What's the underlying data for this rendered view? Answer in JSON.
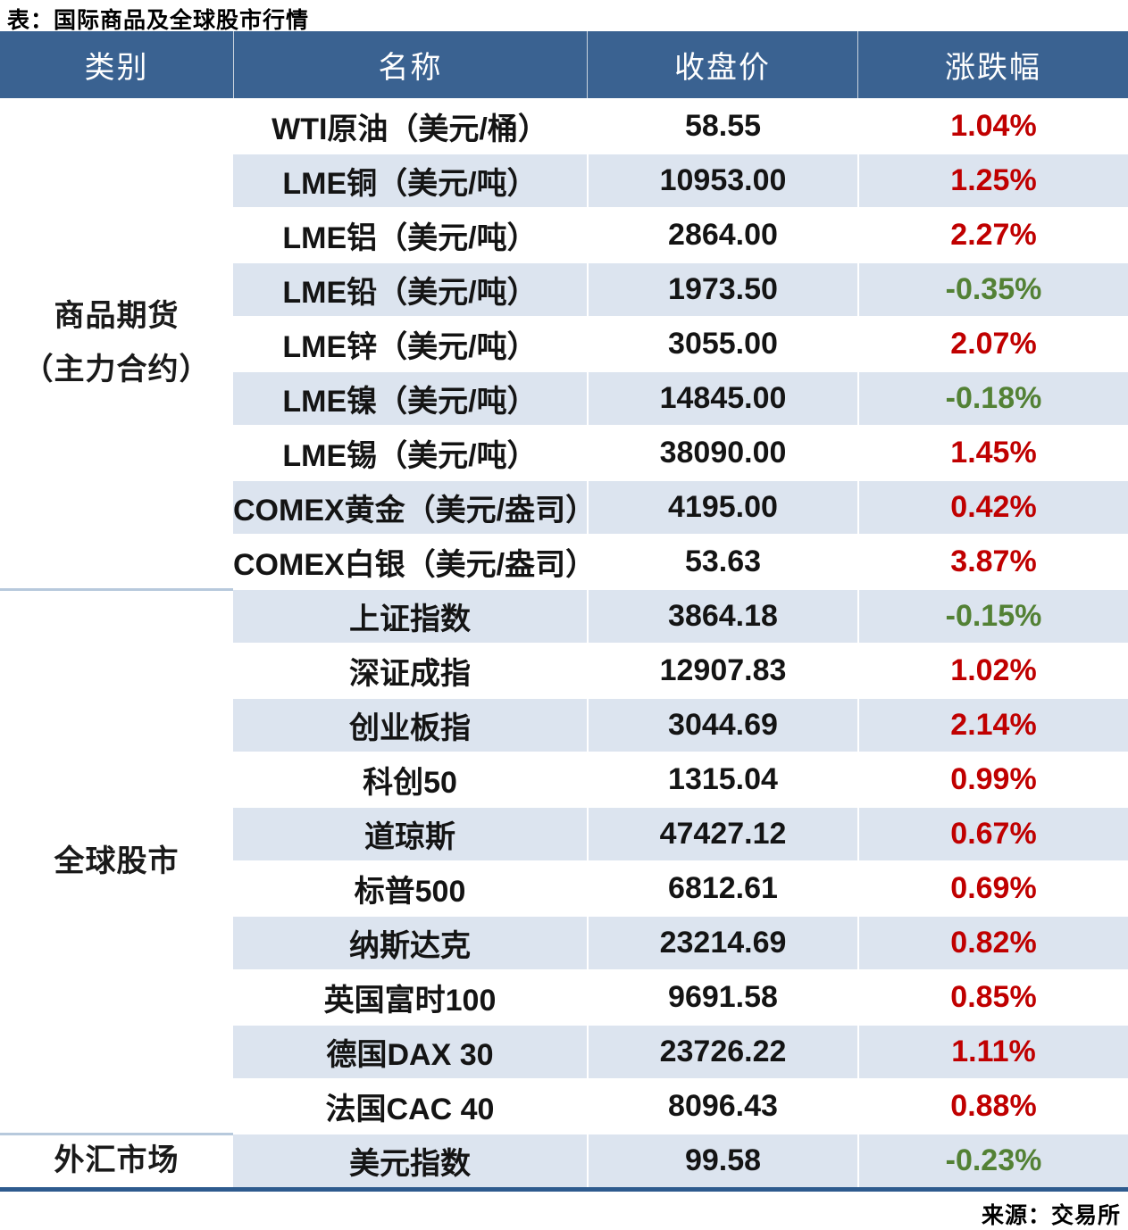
{
  "colors": {
    "header_bg": "#3A6291",
    "row_alt": "#DCE4EF",
    "up": "#C00000",
    "down": "#538135",
    "table_border": "#2E5B8E",
    "group_sep": "#B7C9DC"
  },
  "chart_data": {
    "type": "table",
    "title": "表：国际商品及全球股市行情",
    "source": "来源：交易所",
    "columns": [
      "类别",
      "名称",
      "收盘价",
      "涨跌幅"
    ],
    "groups": [
      {
        "category": "商品期货（主力合约）",
        "category_lines": [
          "商品期货",
          "（主力合约）"
        ],
        "rows": [
          {
            "name": "WTI原油（美元/桶）",
            "close": "58.55",
            "change": "1.04%",
            "direction": "up"
          },
          {
            "name": "LME铜（美元/吨）",
            "close": "10953.00",
            "change": "1.25%",
            "direction": "up"
          },
          {
            "name": "LME铝（美元/吨）",
            "close": "2864.00",
            "change": "2.27%",
            "direction": "up"
          },
          {
            "name": "LME铅（美元/吨）",
            "close": "1973.50",
            "change": "-0.35%",
            "direction": "down"
          },
          {
            "name": "LME锌（美元/吨）",
            "close": "3055.00",
            "change": "2.07%",
            "direction": "up"
          },
          {
            "name": "LME镍（美元/吨）",
            "close": "14845.00",
            "change": "-0.18%",
            "direction": "down"
          },
          {
            "name": "LME锡（美元/吨）",
            "close": "38090.00",
            "change": "1.45%",
            "direction": "up"
          },
          {
            "name": "COMEX黄金（美元/盎司）",
            "close": "4195.00",
            "change": "0.42%",
            "direction": "up"
          },
          {
            "name": "COMEX白银（美元/盎司）",
            "close": "53.63",
            "change": "3.87%",
            "direction": "up"
          }
        ]
      },
      {
        "category": "全球股市",
        "category_lines": [
          "全球股市"
        ],
        "rows": [
          {
            "name": "上证指数",
            "close": "3864.18",
            "change": "-0.15%",
            "direction": "down"
          },
          {
            "name": "深证成指",
            "close": "12907.83",
            "change": "1.02%",
            "direction": "up"
          },
          {
            "name": "创业板指",
            "close": "3044.69",
            "change": "2.14%",
            "direction": "up"
          },
          {
            "name": "科创50",
            "close": "1315.04",
            "change": "0.99%",
            "direction": "up"
          },
          {
            "name": "道琼斯",
            "close": "47427.12",
            "change": "0.67%",
            "direction": "up"
          },
          {
            "name": "标普500",
            "close": "6812.61",
            "change": "0.69%",
            "direction": "up"
          },
          {
            "name": "纳斯达克",
            "close": "23214.69",
            "change": "0.82%",
            "direction": "up"
          },
          {
            "name": "英国富时100",
            "close": "9691.58",
            "change": "0.85%",
            "direction": "up"
          },
          {
            "name": "德国DAX 30",
            "close": "23726.22",
            "change": "1.11%",
            "direction": "up"
          },
          {
            "name": "法国CAC 40",
            "close": "8096.43",
            "change": "0.88%",
            "direction": "up"
          }
        ]
      },
      {
        "category": "外汇市场",
        "category_lines": [
          "外汇市场"
        ],
        "rows": [
          {
            "name": "美元指数",
            "close": "99.58",
            "change": "-0.23%",
            "direction": "down"
          }
        ]
      }
    ]
  }
}
